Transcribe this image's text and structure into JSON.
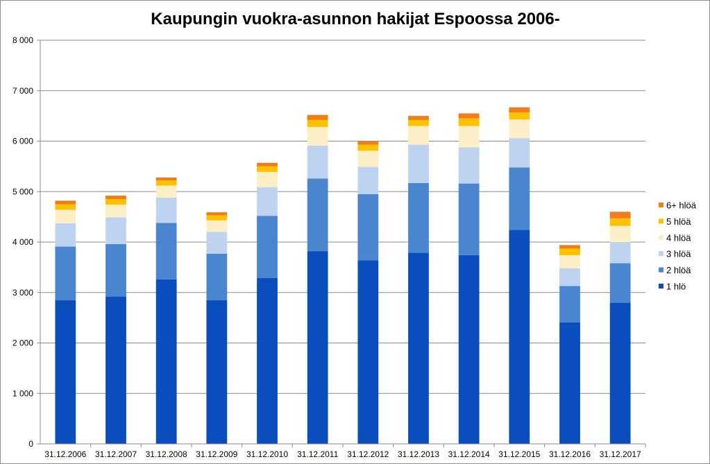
{
  "chart_data": {
    "type": "bar",
    "stacked": true,
    "title": "Kaupungin vuokra-asunnon hakijat Espoossa 2006-",
    "xlabel": "",
    "ylabel": "",
    "ylim": [
      0,
      8000
    ],
    "yticks": [
      0,
      1000,
      2000,
      3000,
      4000,
      5000,
      6000,
      7000,
      8000
    ],
    "ytick_labels": [
      "0",
      "1 000",
      "2 000",
      "3 000",
      "4 000",
      "5 000",
      "6 000",
      "7 000",
      "8 000"
    ],
    "grid": true,
    "legend_position": "right",
    "categories": [
      "31.12.2006",
      "31.12.2007",
      "31.12.2008",
      "31.12.2009",
      "31.12.2010",
      "31.12.2011",
      "31.12.2012",
      "31.12.2013",
      "31.12.2014",
      "31.12.2015",
      "31.12.2016",
      "31.12.2017"
    ],
    "series": [
      {
        "name": "1 hlö",
        "color": "#0a4ebd",
        "values": [
          2850,
          2920,
          3260,
          2850,
          3290,
          3820,
          3640,
          3790,
          3740,
          4240,
          2410,
          2800
        ]
      },
      {
        "name": "2 hlöä",
        "color": "#4a86d0",
        "values": [
          1060,
          1040,
          1120,
          920,
          1230,
          1440,
          1310,
          1380,
          1420,
          1240,
          720,
          780
        ]
      },
      {
        "name": "3 hlöä",
        "color": "#bdd3ef",
        "values": [
          460,
          530,
          500,
          430,
          570,
          650,
          540,
          760,
          720,
          580,
          350,
          420
        ]
      },
      {
        "name": "4 hlöä",
        "color": "#fcefc5",
        "values": [
          270,
          250,
          240,
          230,
          300,
          370,
          320,
          370,
          420,
          370,
          260,
          320
        ]
      },
      {
        "name": "5 hlöä",
        "color": "#fdc100",
        "values": [
          110,
          110,
          100,
          100,
          110,
          140,
          120,
          120,
          150,
          140,
          130,
          150
        ]
      },
      {
        "name": "6+  hlöä",
        "color": "#f07c1a",
        "values": [
          70,
          70,
          60,
          60,
          70,
          100,
          70,
          80,
          100,
          100,
          70,
          130
        ]
      }
    ]
  }
}
